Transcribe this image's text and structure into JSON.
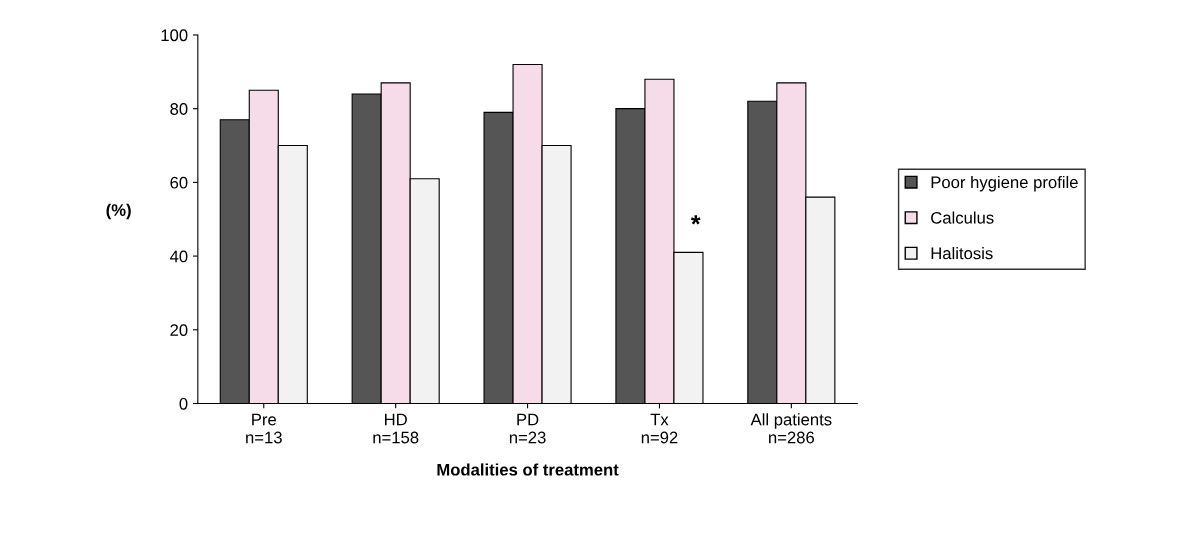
{
  "chart_data": {
    "type": "bar",
    "xlabel": "Modalities of treatment",
    "ylabel": "(%)",
    "categories": [
      "Pre\nn=13",
      "HD\nn=158",
      "PD\nn=23",
      "Tx\nn=92",
      "All patients\nn=286"
    ],
    "series": [
      {
        "name": "Poor hygiene profile",
        "color": "#555555",
        "values": [
          77,
          84,
          79,
          80,
          82
        ]
      },
      {
        "name": "Calculus",
        "color": "#f6dbe8",
        "values": [
          85,
          87,
          92,
          88,
          87
        ]
      },
      {
        "name": "Halitosis",
        "color": "#f2f2f2",
        "values": [
          70,
          61,
          70,
          41,
          56
        ]
      }
    ],
    "ylim": [
      0,
      100
    ],
    "yticks": [
      0,
      20,
      40,
      60,
      80,
      100
    ],
    "grid": false,
    "legend": "right",
    "annotations": [
      "*"
    ]
  }
}
